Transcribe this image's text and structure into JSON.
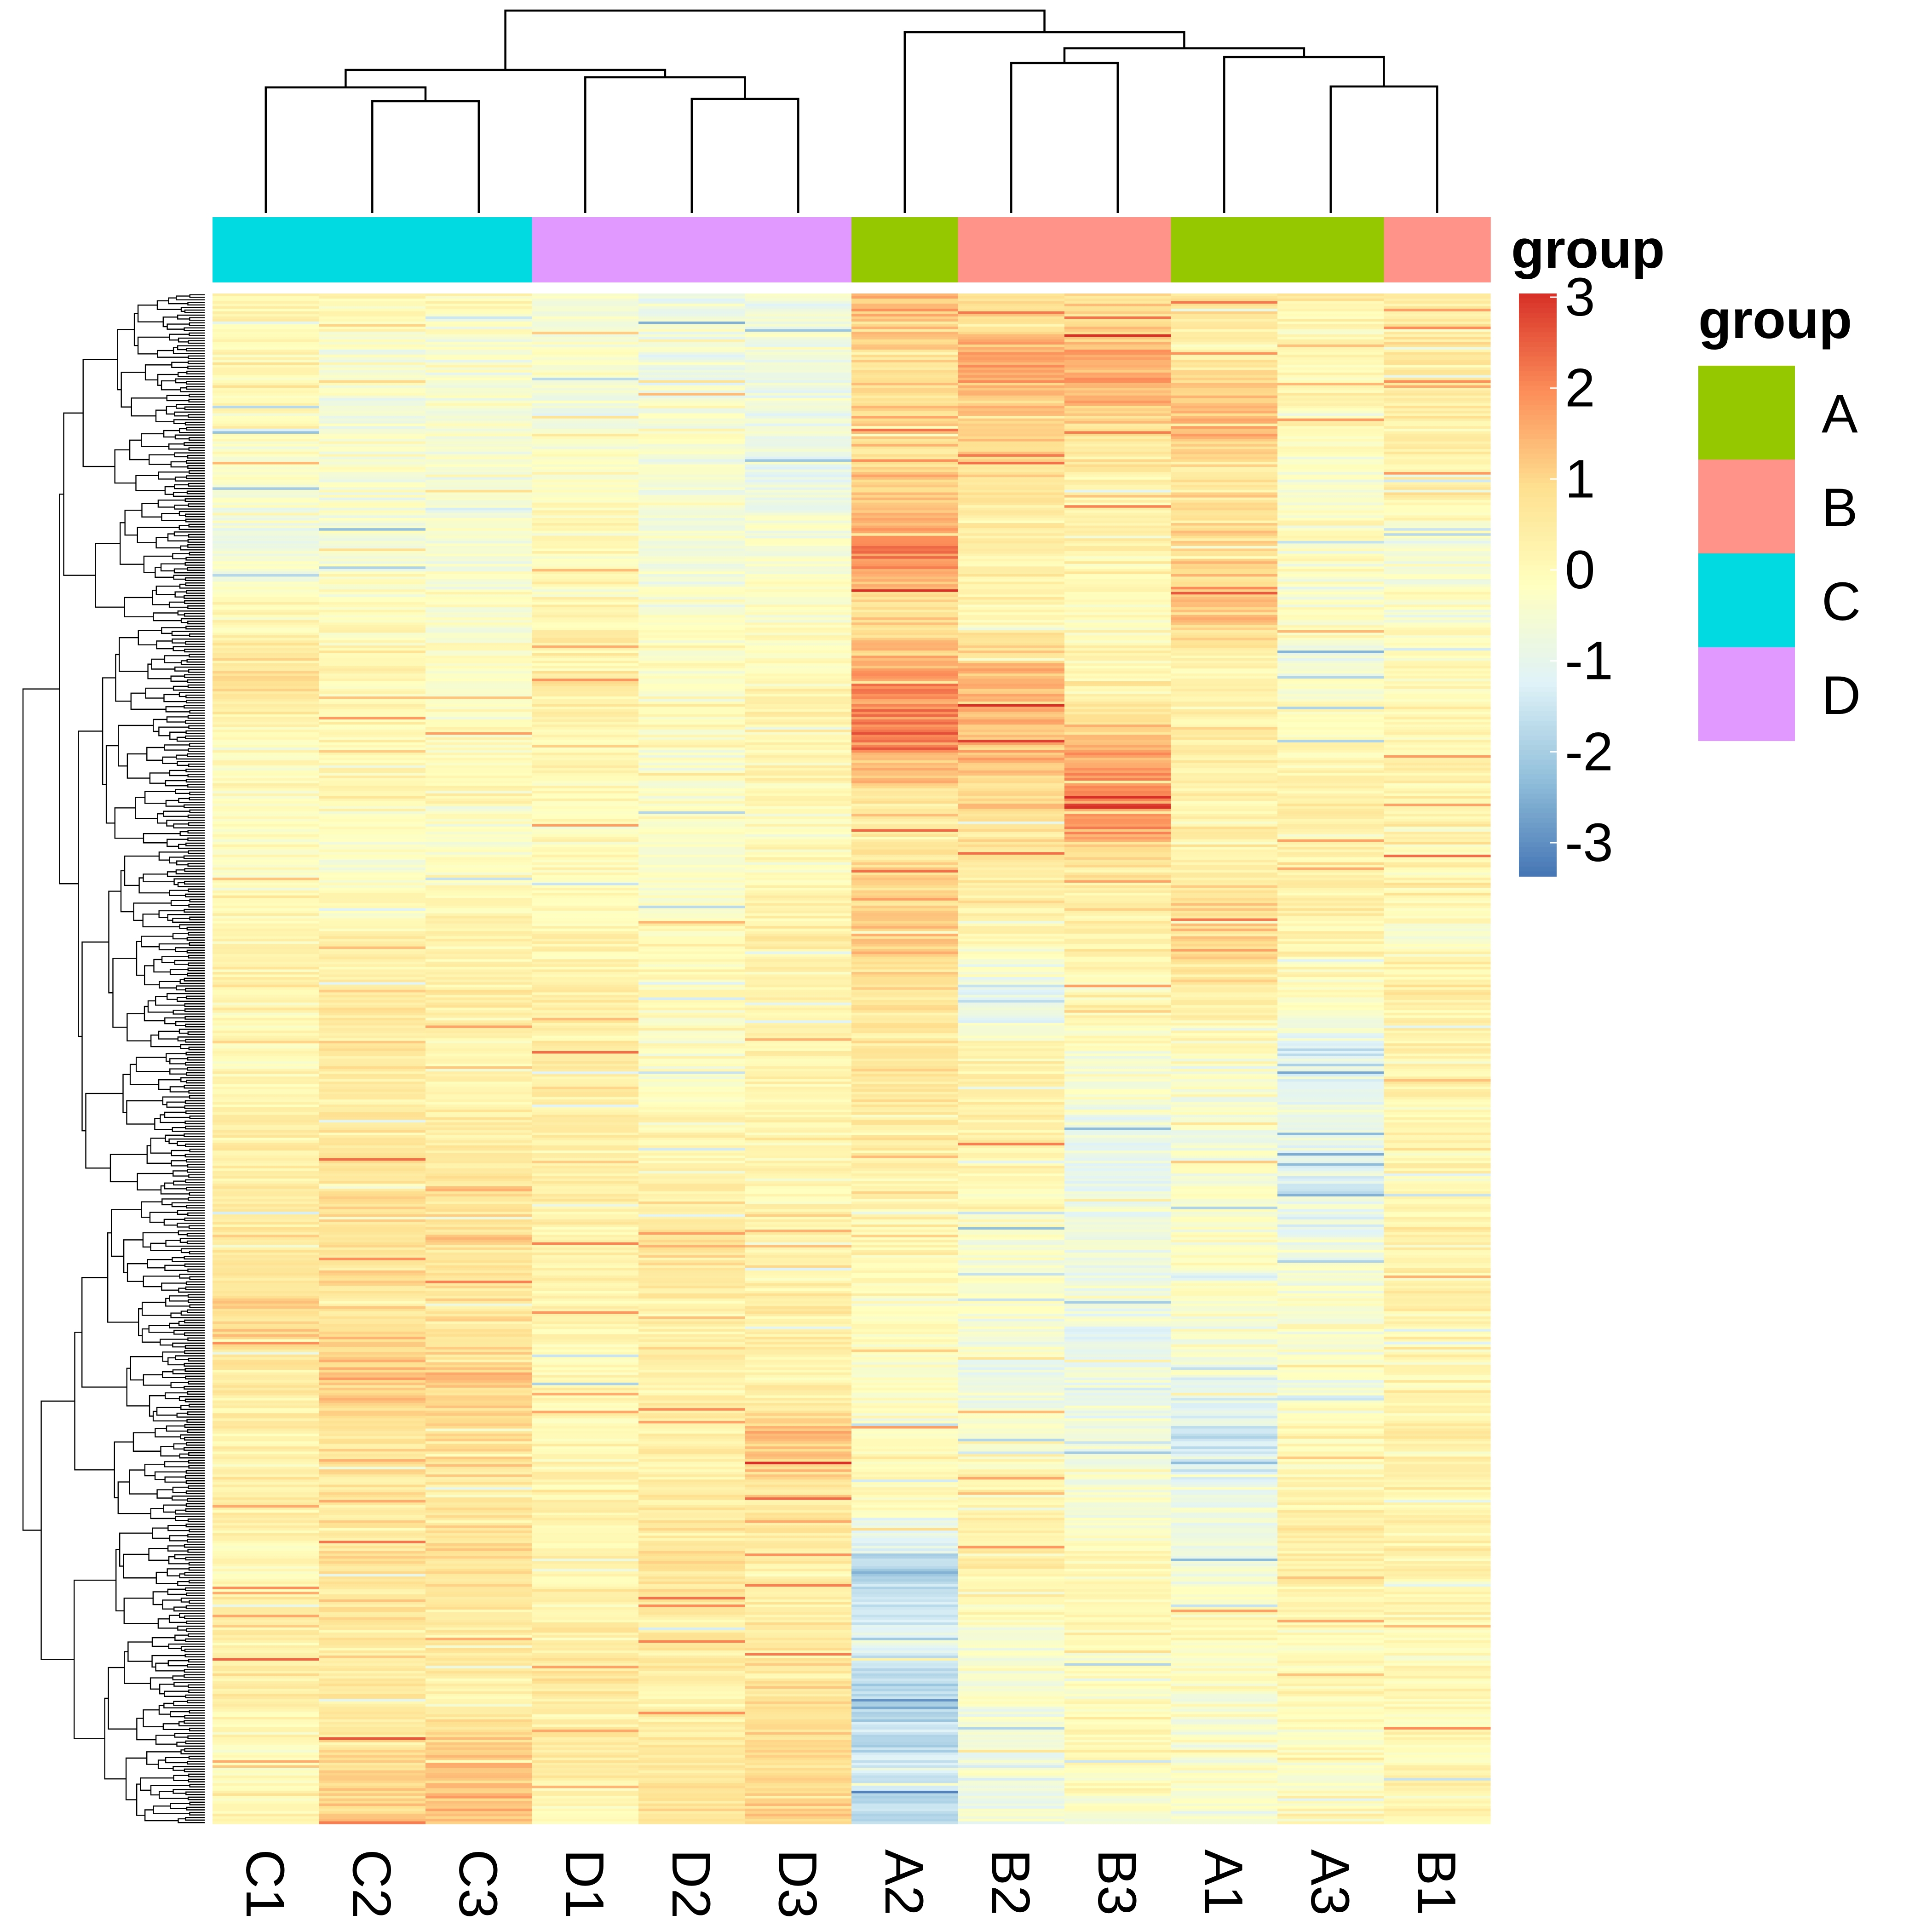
{
  "chart_data": {
    "type": "heatmap",
    "title": "",
    "xlabel": "",
    "ylabel": "",
    "columns": [
      "C1",
      "C2",
      "C3",
      "D1",
      "D2",
      "D3",
      "A2",
      "B2",
      "B3",
      "A1",
      "A3",
      "B1"
    ],
    "column_groups": [
      "C",
      "C",
      "C",
      "D",
      "D",
      "D",
      "A",
      "B",
      "B",
      "A",
      "A",
      "B"
    ],
    "n_rows": 600,
    "row_dendrogram": true,
    "column_dendrogram": true,
    "color_scale": {
      "title": "group",
      "min": -3,
      "max": 3,
      "ticks": [
        3,
        2,
        1,
        0,
        -1,
        -2,
        -3
      ],
      "colors": [
        "#4575b4",
        "#91bfdb",
        "#e0f3f8",
        "#ffffbf",
        "#fee090",
        "#fc8d59",
        "#d73027"
      ]
    },
    "annotation_legend": {
      "title": "group",
      "items": [
        {
          "label": "A",
          "color": "#96c800"
        },
        {
          "label": "B",
          "color": "#ff9289"
        },
        {
          "label": "C",
          "color": "#00dae0"
        },
        {
          "label": "D",
          "color": "#e199ff"
        }
      ]
    },
    "column_profiles": {
      "C1": [
        0.3,
        0.2,
        0.1,
        -0.2,
        -0.6,
        0.2,
        0.9,
        0.1,
        0.0,
        0.0,
        0.2,
        0.4,
        0.3,
        0.4,
        0.6,
        0.7,
        1.1,
        0.6,
        0.4,
        0.5,
        0.3,
        0.5,
        0.5,
        0.2,
        0.3
      ],
      "C2": [
        0.2,
        -0.2,
        -0.3,
        -0.2,
        -0.5,
        0.1,
        0.2,
        0.3,
        0.1,
        -0.2,
        0.4,
        0.6,
        0.6,
        0.6,
        0.9,
        0.9,
        0.8,
        1.2,
        0.9,
        0.6,
        0.9,
        0.7,
        0.6,
        1.0,
        1.2
      ],
      "C3": [
        0.0,
        -0.4,
        -0.3,
        -0.3,
        -0.4,
        -0.1,
        -0.2,
        0.1,
        0.1,
        -0.2,
        0.5,
        0.4,
        0.3,
        0.5,
        0.8,
        0.9,
        0.6,
        1.1,
        1.0,
        0.7,
        0.8,
        0.7,
        0.6,
        1.2,
        1.3
      ],
      "D1": [
        -0.4,
        -0.2,
        -0.5,
        0.0,
        0.1,
        0.4,
        0.5,
        0.3,
        0.2,
        0.1,
        0.2,
        0.5,
        0.5,
        0.5,
        0.6,
        0.5,
        0.3,
        0.2,
        0.1,
        0.4,
        0.3,
        0.4,
        0.6,
        0.7,
        0.1
      ],
      "D2": [
        -0.5,
        -0.5,
        -0.3,
        -0.3,
        -0.4,
        -0.1,
        0.1,
        0.0,
        -0.2,
        -0.1,
        0.1,
        0.2,
        -0.2,
        0.1,
        0.5,
        0.8,
        0.4,
        0.6,
        0.5,
        0.6,
        0.9,
        0.6,
        0.5,
        0.7,
        0.9
      ],
      "D3": [
        -0.4,
        -0.5,
        -0.6,
        -0.6,
        -0.3,
        0.0,
        0.2,
        0.3,
        0.2,
        0.0,
        0.5,
        0.4,
        0.3,
        0.4,
        0.2,
        0.3,
        0.5,
        0.3,
        1.4,
        0.8,
        0.5,
        0.6,
        0.8,
        1.0,
        1.1
      ],
      "A2": [
        1.6,
        0.9,
        1.1,
        1.0,
        2.2,
        0.9,
        1.8,
        2.2,
        0.5,
        0.9,
        1.4,
        0.6,
        0.8,
        0.5,
        0.4,
        0.2,
        0.0,
        -0.1,
        0.1,
        0.2,
        -1.8,
        -0.8,
        -1.6,
        -1.2,
        -1.4
      ],
      "B2": [
        0.6,
        1.8,
        1.2,
        0.6,
        0.5,
        0.3,
        1.5,
        1.4,
        1.0,
        0.6,
        0.5,
        -1.0,
        0.4,
        0.5,
        0.2,
        -0.2,
        -0.1,
        -0.7,
        -0.1,
        0.3,
        0.6,
        -0.2,
        -0.3,
        -0.6,
        -0.5
      ],
      "B3": [
        0.8,
        1.5,
        1.2,
        0.3,
        0.4,
        0.0,
        0.2,
        1.3,
        2.3,
        0.6,
        0.5,
        0.2,
        0.0,
        -0.5,
        -0.8,
        -0.4,
        -0.6,
        -0.7,
        -0.4,
        -0.2,
        0.3,
        0.0,
        -0.1,
        0.2,
        -0.2
      ],
      "A1": [
        0.8,
        0.6,
        1.6,
        0.7,
        1.2,
        1.3,
        0.3,
        0.6,
        0.4,
        0.4,
        1.2,
        0.5,
        0.0,
        -0.4,
        -0.2,
        -0.1,
        -0.2,
        -0.6,
        -1.2,
        -0.4,
        -0.6,
        0.2,
        -0.3,
        -0.2,
        -0.4
      ],
      "A3": [
        0.3,
        0.2,
        0.3,
        -0.2,
        0.0,
        -0.3,
        -0.4,
        0.2,
        0.4,
        0.6,
        0.3,
        0.2,
        -1.1,
        -0.5,
        -1.0,
        -0.5,
        -0.3,
        -0.2,
        0.0,
        0.3,
        0.5,
        0.1,
        0.2,
        -0.1,
        0.2
      ],
      "B1": [
        0.6,
        0.9,
        0.5,
        0.4,
        -0.3,
        0.0,
        0.1,
        0.4,
        0.3,
        0.5,
        -0.2,
        0.6,
        0.3,
        0.2,
        0.3,
        0.3,
        0.4,
        0.2,
        0.6,
        0.3,
        0.4,
        0.2,
        0.3,
        0.1,
        0.3
      ]
    }
  }
}
